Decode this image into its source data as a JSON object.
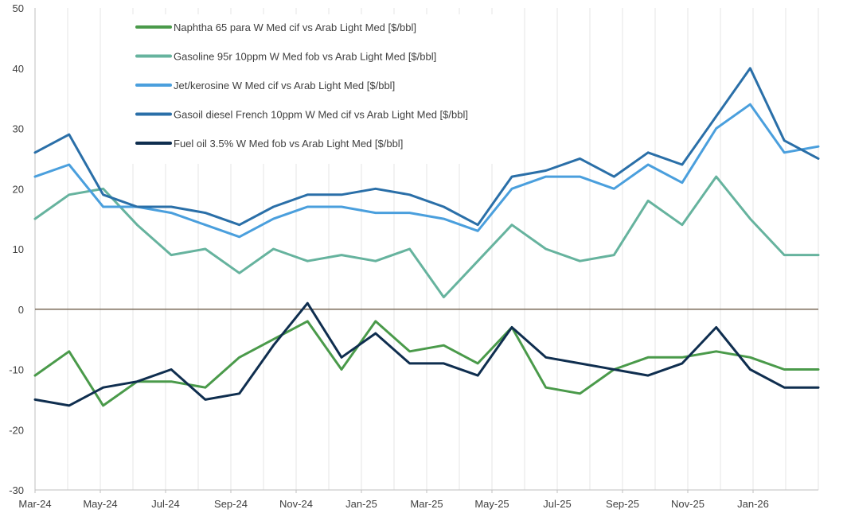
{
  "chart_data": {
    "type": "line",
    "title": "",
    "xlabel": "",
    "ylabel": "",
    "ylim": [
      -30,
      50
    ],
    "yticks": [
      "50",
      "40",
      "30",
      "20",
      "10",
      "0",
      "-10",
      "-20",
      "-30"
    ],
    "x_tick_labels": [
      "Mar-24",
      "May-24",
      "Jul-24",
      "Sep-24",
      "Nov-24",
      "Jan-25",
      "Mar-25",
      "May-25",
      "Jul-25",
      "Sep-25",
      "Nov-25",
      "Jan-26"
    ],
    "x": [
      "2024-03",
      "2024-04",
      "2024-05",
      "2024-06",
      "2024-07",
      "2024-08",
      "2024-09",
      "2024-10",
      "2024-11",
      "2024-12",
      "2025-01",
      "2025-02",
      "2025-03",
      "2025-04",
      "2025-05",
      "2025-06",
      "2025-07",
      "2025-08",
      "2025-09",
      "2025-10",
      "2025-11",
      "2025-12",
      "2026-01",
      "2026-02"
    ],
    "grid": "vertical",
    "legend_position": "top-left",
    "series": [
      {
        "name": "Naphtha 65 para W Med cif vs Arab Light Med [$/bbl]",
        "color": "#4a9a4a",
        "values": [
          -11,
          -7,
          -16,
          -12,
          -12,
          -13,
          -8,
          -5,
          -2,
          -10,
          -2,
          -7,
          -6,
          -9,
          -3,
          -13,
          -14,
          -10,
          -8,
          -8,
          -7,
          -8,
          -10,
          -10
        ]
      },
      {
        "name": "Gasoline 95r 10ppm W Med fob vs Arab Light Med [$/bbl]",
        "color": "#66b39e",
        "values": [
          15,
          19,
          20,
          14,
          9,
          10,
          6,
          10,
          8,
          9,
          8,
          10,
          2,
          8,
          14,
          10,
          8,
          9,
          18,
          14,
          22,
          15,
          9,
          9
        ]
      },
      {
        "name": "Jet/kerosine W Med cif vs Arab Light Med [$/bbl]",
        "color": "#4a9fdd",
        "values": [
          22,
          24,
          17,
          17,
          16,
          14,
          12,
          15,
          17,
          17,
          16,
          16,
          15,
          13,
          20,
          22,
          22,
          20,
          24,
          21,
          30,
          34,
          26,
          27
        ]
      },
      {
        "name": "Gasoil diesel French 10ppm W Med cif vs Arab Light Med [$/bbl]",
        "color": "#2a6fa8",
        "values": [
          26,
          29,
          19,
          17,
          17,
          16,
          14,
          17,
          19,
          19,
          20,
          19,
          17,
          14,
          22,
          23,
          25,
          22,
          26,
          24,
          32,
          40,
          28,
          25
        ]
      },
      {
        "name": "Fuel oil 3.5% W Med fob vs Arab Light Med [$/bbl]",
        "color": "#0f2e4f",
        "values": [
          -15,
          -16,
          -13,
          -12,
          -10,
          -15,
          -14,
          -6,
          1,
          -8,
          -4,
          -9,
          -9,
          -11,
          -3,
          -8,
          -9,
          -10,
          -11,
          -9,
          -3,
          -10,
          -13,
          -13
        ]
      }
    ]
  }
}
